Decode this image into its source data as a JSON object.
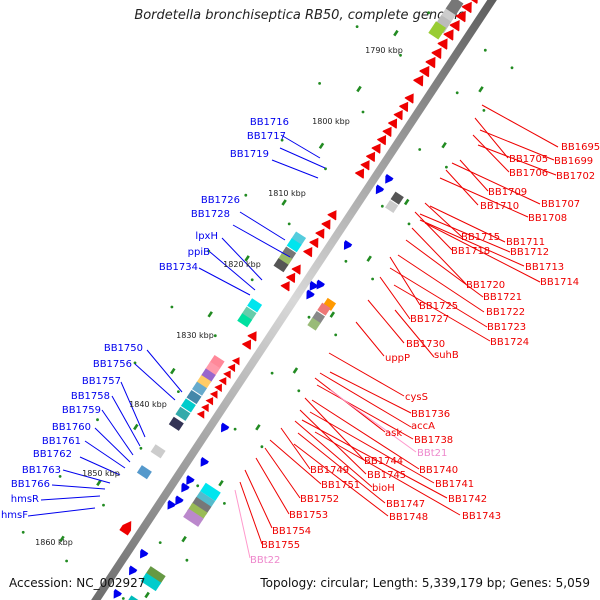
{
  "title": "Bordetella bronchiseptica RB50, complete genome",
  "footer": {
    "accession": "Accession: NC_002927",
    "stats": "Topology: circular; Length: 5,339,179 bp; Genes: 5,059"
  },
  "scale_labels": [
    "1790 kbp",
    "1800 kbp",
    "1810 kbp",
    "1820 kbp",
    "1830 kbp",
    "1840 kbp",
    "1850 kbp",
    "1860 kbp"
  ],
  "left_labels": [
    "BB1716",
    "BB1717",
    "BB1719",
    "BB1726",
    "BB1728",
    "lpxH",
    "ppiB",
    "BB1734",
    "BB1750",
    "BB1756",
    "BB1757",
    "BB1758",
    "BB1759",
    "BB1760",
    "BB1761",
    "BB1762",
    "BB1763",
    "BB1766",
    "hmsR",
    "hmsF"
  ],
  "right_labels": [
    "BB1695",
    "BB1705",
    "BB1699",
    "BB1706",
    "BB1702",
    "BB1709",
    "BB1707",
    "BB1710",
    "BB1708",
    "BB1715",
    "BB1711",
    "BB1718",
    "BB1712",
    "BB1713",
    "BB1720",
    "BB1714",
    "BB1721",
    "BB1725",
    "BB1722",
    "BB1727",
    "BB1723",
    "BB1724",
    "BB1730",
    "suhB",
    "uppP",
    "cysS",
    "BB1736",
    "accA",
    "ask",
    "BB1738",
    "BBt21",
    "BB1744",
    "BB1740",
    "BB1749",
    "BB1745",
    "BB1741",
    "BB1751",
    "bioH",
    "BB1742",
    "BB1752",
    "BB1747",
    "BB1748",
    "BB1743",
    "BB1753",
    "BB1754",
    "BB1755",
    "BBt22"
  ],
  "colors": {
    "forward": "#0000ee",
    "reverse": "#ee0000",
    "trna": "#ee88cc",
    "backbone": "#888888",
    "scale": "#228b22"
  }
}
